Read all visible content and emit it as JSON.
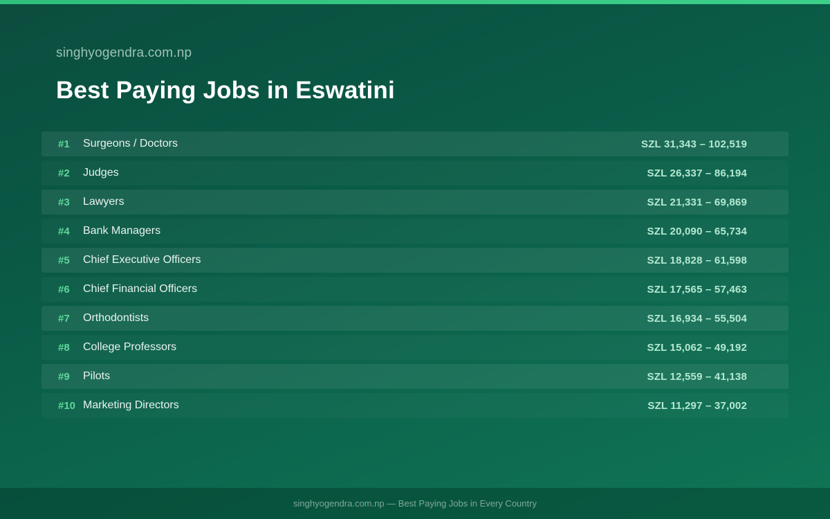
{
  "site_name": "singhyogendra.com.np",
  "title": "Best Paying Jobs in Eswatini",
  "colors": {
    "accent": "#3ccf8a",
    "rank": "#5ed79a",
    "salary": "#b4e9d2",
    "background": "#0a5a46"
  },
  "jobs": [
    {
      "rank": "#1",
      "name": "Surgeons / Doctors",
      "salary": "SZL 31,343 – 102,519"
    },
    {
      "rank": "#2",
      "name": "Judges",
      "salary": "SZL 26,337 – 86,194"
    },
    {
      "rank": "#3",
      "name": "Lawyers",
      "salary": "SZL 21,331 – 69,869"
    },
    {
      "rank": "#4",
      "name": "Bank Managers",
      "salary": "SZL 20,090 – 65,734"
    },
    {
      "rank": "#5",
      "name": "Chief Executive Officers",
      "salary": "SZL 18,828 – 61,598"
    },
    {
      "rank": "#6",
      "name": "Chief Financial Officers",
      "salary": "SZL 17,565 – 57,463"
    },
    {
      "rank": "#7",
      "name": "Orthodontists",
      "salary": "SZL 16,934 – 55,504"
    },
    {
      "rank": "#8",
      "name": "College Professors",
      "salary": "SZL 15,062 – 49,192"
    },
    {
      "rank": "#9",
      "name": "Pilots",
      "salary": "SZL 12,559 – 41,138"
    },
    {
      "rank": "#10",
      "name": "Marketing Directors",
      "salary": "SZL 11,297 – 37,002"
    }
  ],
  "footer": "singhyogendra.com.np — Best Paying Jobs in Every Country"
}
